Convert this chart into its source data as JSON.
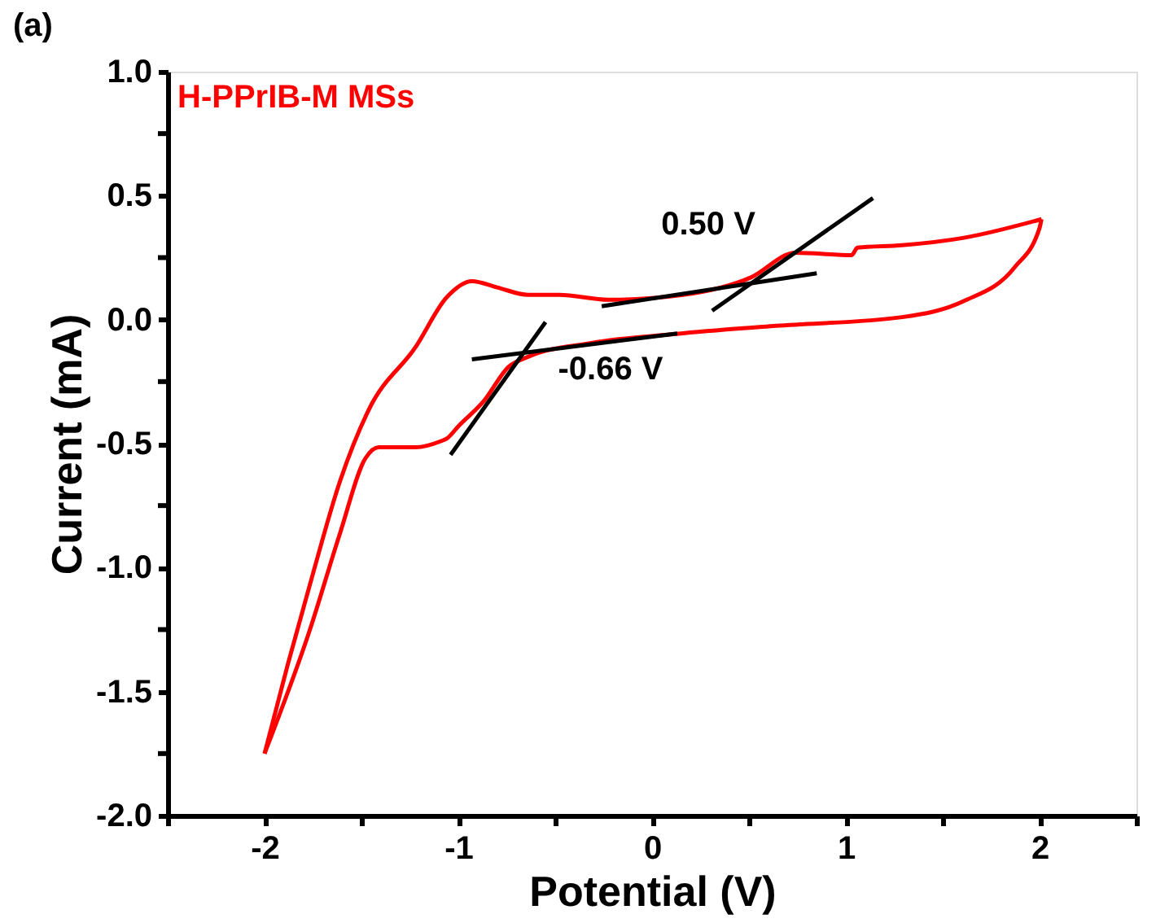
{
  "chart_data": {
    "type": "line",
    "title": "(a)",
    "xlabel": "Potential (V)",
    "ylabel": "Current (mA)",
    "xlim": [
      -2.5,
      2.5
    ],
    "ylim": [
      -2.0,
      1.0
    ],
    "xticks": [
      {
        "value": -2.5,
        "label": null
      },
      -2,
      {
        "value": -1.5,
        "label": null
      },
      -1,
      {
        "value": -0.5,
        "label": null
      },
      0,
      {
        "value": 0.5,
        "label": null
      },
      1,
      {
        "value": 1.5,
        "label": null
      },
      2,
      {
        "value": 2.5,
        "label": null
      }
    ],
    "yticks": [
      {
        "value": -2,
        "label": "-2.0"
      },
      {
        "value": -1.75,
        "label": null
      },
      -1.5,
      {
        "value": -1.25,
        "label": null
      },
      {
        "value": -1,
        "label": "-1.0"
      },
      {
        "value": -0.75,
        "label": null
      },
      -0.5,
      {
        "value": -0.25,
        "label": null
      },
      {
        "value": 0,
        "label": "0.0"
      },
      {
        "value": 0.25,
        "label": null
      },
      0.5,
      {
        "value": 0.75,
        "label": null
      },
      {
        "value": 1,
        "label": "1.0"
      }
    ],
    "grid": false,
    "marker": "none",
    "line_style": "solid",
    "series": [
      {
        "name": "H-PPrIB-M MSs",
        "color": "#ff0000",
        "x": [
          -2.0,
          -1.88,
          -1.77,
          -1.61,
          -1.46,
          -1.22,
          -1.06,
          -0.93,
          -0.8,
          -0.64,
          -0.48,
          -0.225,
          0.16,
          0.51,
          0.74,
          1.03,
          1.06,
          1.29,
          1.61,
          2.01
        ],
        "values": [
          -1.75,
          -1.39,
          -1.08,
          -0.65,
          -0.36,
          -0.11,
          0.09,
          0.155,
          0.13,
          0.1,
          0.1,
          0.08,
          0.1,
          0.17,
          0.27,
          0.26,
          0.29,
          0.3,
          0.33,
          0.405
        ]
      },
      {
        "color": "#ff0000",
        "x": [
          -2.0,
          -1.77,
          -1.61,
          -1.48,
          -1.41,
          -1.22,
          -1.09,
          -1.06,
          -1.0,
          -0.87,
          -0.74,
          -0.64,
          -0.32,
          0.16,
          0.64,
          1.29,
          1.61,
          1.87,
          2.0,
          2.01
        ],
        "values": [
          -1.75,
          -1.26,
          -0.86,
          -0.56,
          -0.515,
          -0.515,
          -0.49,
          -0.48,
          -0.43,
          -0.33,
          -0.19,
          -0.15,
          -0.095,
          -0.055,
          -0.025,
          0.01,
          0.075,
          0.21,
          0.37,
          0.405
        ]
      },
      {
        "type": "line",
        "color": "#000000",
        "x": [
          -0.26,
          0.85
        ],
        "values": [
          0.054,
          0.187
        ]
      },
      {
        "type": "line",
        "color": "#000000",
        "x": [
          0.31,
          1.14
        ],
        "values": [
          0.036,
          0.49
        ]
      },
      {
        "type": "line",
        "color": "#000000",
        "x": [
          -0.93,
          0.13
        ],
        "values": [
          -0.16,
          -0.056
        ]
      },
      {
        "type": "line",
        "color": "#000000",
        "x": [
          -1.04,
          -0.55
        ],
        "values": [
          -0.545,
          -0.01
        ]
      }
    ],
    "annotations": [
      "0.50 V",
      "-0.66 V"
    ]
  }
}
